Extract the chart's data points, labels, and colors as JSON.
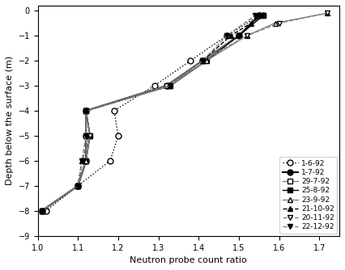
{
  "title": "",
  "xlabel": "Neutron probe count ratio",
  "ylabel": "Depth below the surface (m)",
  "xlim": [
    1.0,
    1.75
  ],
  "ylim": [
    -9,
    0.2
  ],
  "yticks": [
    0,
    -1,
    -2,
    -3,
    -4,
    -5,
    -6,
    -7,
    -8,
    -9
  ],
  "xticks": [
    1.0,
    1.1,
    1.2,
    1.3,
    1.4,
    1.5,
    1.6,
    1.7
  ],
  "series": [
    {
      "label": "1-6-92",
      "color": "black",
      "linestyle": "dotted",
      "marker": "o",
      "markerfacecolor": "white",
      "markersize": 5,
      "linewidth": 1.0,
      "x": [
        1.02,
        1.1,
        1.18,
        1.2,
        1.19,
        1.29,
        1.38,
        1.47,
        1.55
      ],
      "y": [
        -8.0,
        -7.0,
        -6.0,
        -5.0,
        -4.0,
        -3.0,
        -2.0,
        -1.0,
        -0.2
      ]
    },
    {
      "label": "1-7-92",
      "color": "black",
      "linestyle": "solid",
      "marker": "o",
      "markerfacecolor": "black",
      "markersize": 5,
      "linewidth": 1.5,
      "x": [
        1.01,
        1.1,
        1.12,
        1.12,
        1.12,
        1.32,
        1.41,
        1.5,
        1.55
      ],
      "y": [
        -8.0,
        -7.0,
        -6.0,
        -5.0,
        -4.0,
        -3.0,
        -2.0,
        -1.0,
        -0.2
      ]
    },
    {
      "label": "29-7-92",
      "color": "gray",
      "linestyle": "solid",
      "marker": "s",
      "markerfacecolor": "white",
      "markersize": 5,
      "linewidth": 1.0,
      "x": [
        1.01,
        1.1,
        1.12,
        1.12,
        1.12,
        1.32,
        1.41,
        1.5,
        1.56
      ],
      "y": [
        -8.0,
        -7.0,
        -6.0,
        -5.0,
        -4.0,
        -3.0,
        -2.0,
        -1.0,
        -0.2
      ]
    },
    {
      "label": "25-8-92",
      "color": "black",
      "linestyle": "solid",
      "marker": "s",
      "markerfacecolor": "black",
      "markersize": 5,
      "linewidth": 1.0,
      "x": [
        1.01,
        1.1,
        1.12,
        1.13,
        1.12,
        1.33,
        1.42,
        1.5,
        1.56
      ],
      "y": [
        -8.0,
        -7.0,
        -6.0,
        -5.0,
        -4.0,
        -3.0,
        -2.0,
        -1.0,
        -0.2
      ]
    },
    {
      "label": "23-9-92",
      "color": "gray",
      "linestyle": "solid",
      "marker": "^",
      "markerfacecolor": "white",
      "markersize": 5,
      "linewidth": 1.0,
      "x": [
        1.01,
        1.1,
        1.12,
        1.13,
        1.12,
        1.33,
        1.42,
        1.52,
        1.59,
        1.72
      ],
      "y": [
        -8.0,
        -7.0,
        -6.0,
        -5.0,
        -4.0,
        -3.0,
        -2.0,
        -1.0,
        -0.5,
        -0.1
      ]
    },
    {
      "label": "21-10-92",
      "color": "black",
      "linestyle": "dashed",
      "marker": "^",
      "markerfacecolor": "black",
      "markersize": 5,
      "linewidth": 1.0,
      "x": [
        1.01,
        1.1,
        1.11,
        1.13,
        1.12,
        1.33,
        1.41,
        1.48,
        1.53,
        1.56
      ],
      "y": [
        -8.0,
        -7.0,
        -6.0,
        -5.0,
        -4.0,
        -3.0,
        -2.0,
        -1.0,
        -0.5,
        -0.15
      ]
    },
    {
      "label": "20-11-92",
      "color": "gray",
      "linestyle": "dashed",
      "marker": "v",
      "markerfacecolor": "white",
      "markersize": 5,
      "linewidth": 1.0,
      "x": [
        1.01,
        1.1,
        1.11,
        1.13,
        1.12,
        1.33,
        1.41,
        1.52,
        1.6,
        1.72
      ],
      "y": [
        -8.0,
        -7.0,
        -6.0,
        -5.0,
        -4.0,
        -3.0,
        -2.0,
        -1.0,
        -0.5,
        -0.1
      ]
    },
    {
      "label": "22-12-92",
      "color": "gray",
      "linestyle": "dashed",
      "marker": "v",
      "markerfacecolor": "black",
      "markersize": 5,
      "linewidth": 1.0,
      "x": [
        1.01,
        1.1,
        1.11,
        1.12,
        1.12,
        1.33,
        1.41,
        1.47,
        1.54
      ],
      "y": [
        -8.0,
        -7.0,
        -6.0,
        -5.0,
        -4.0,
        -3.0,
        -2.0,
        -1.0,
        -0.2
      ]
    }
  ]
}
